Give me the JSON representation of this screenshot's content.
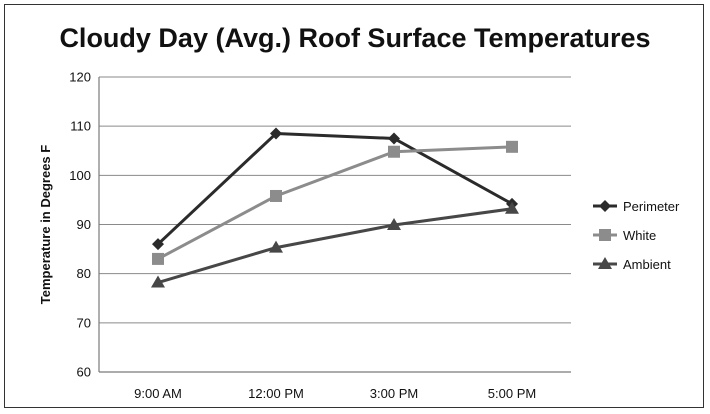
{
  "chart_data": {
    "type": "line",
    "title": "Cloudy Day (Avg.) Roof Surface Temperatures",
    "ylabel": "Temperature in Degrees F",
    "xlabel": "",
    "categories": [
      "9:00 AM",
      "12:00 PM",
      "3:00 PM",
      "5:00 PM"
    ],
    "ylim": [
      60,
      120
    ],
    "yticks": [
      60,
      70,
      80,
      90,
      100,
      110,
      120
    ],
    "grid": true,
    "legend_position": "right",
    "series": [
      {
        "name": "Perimeter",
        "values": [
          86,
          108.5,
          107.5,
          94.2
        ],
        "color": "#2b2b2b",
        "marker": "diamond"
      },
      {
        "name": "White",
        "values": [
          83,
          95.8,
          104.8,
          105.8
        ],
        "color": "#8c8c8c",
        "marker": "square"
      },
      {
        "name": "Ambient",
        "values": [
          78.2,
          85.3,
          89.9,
          93.2
        ],
        "color": "#474747",
        "marker": "triangle"
      }
    ]
  }
}
